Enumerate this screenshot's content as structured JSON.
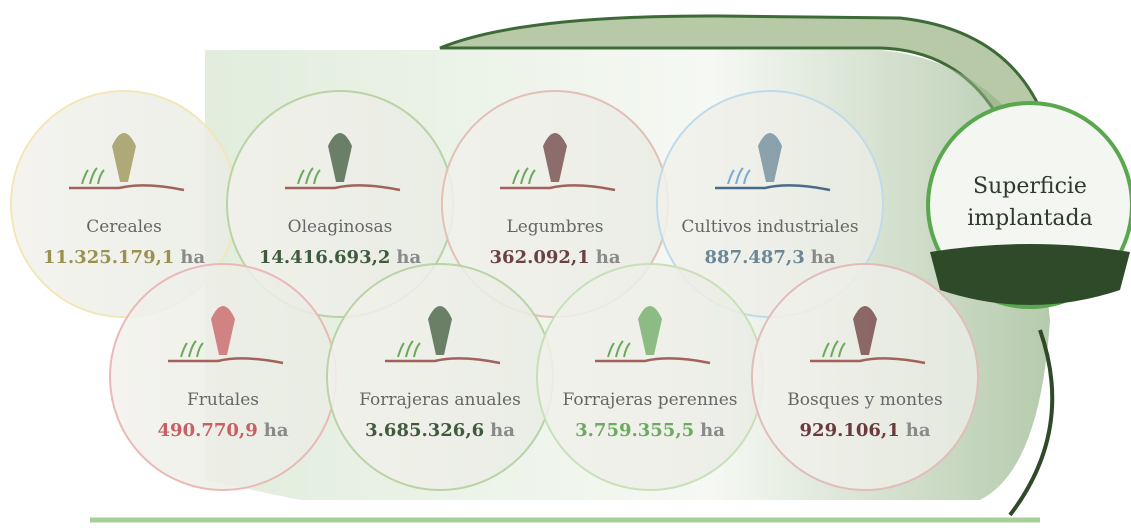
{
  "badge": {
    "title": "Superficie implantada"
  },
  "items": [
    {
      "label": "Cereales",
      "value": "11.325.179,1",
      "unit": "ha",
      "color": "#9a9050",
      "ring": "#f3e6b8"
    },
    {
      "label": "Oleaginosas",
      "value": "14.416.693,2",
      "unit": "ha",
      "color": "#3f5a3c",
      "ring": "#b9d3a6"
    },
    {
      "label": "Legumbres",
      "value": "362.092,1",
      "unit": "ha",
      "color": "#6b4242",
      "ring": "#e2c0b6"
    },
    {
      "label": "Cultivos industriales",
      "value": "887.487,3",
      "unit": "ha",
      "color": "#6a8797",
      "ring": "#bfdbea"
    },
    {
      "label": "Frutales",
      "value": "490.770,9",
      "unit": "ha",
      "color": "#c85f62",
      "ring": "#eab9b6"
    },
    {
      "label": "Forrajeras anuales",
      "value": "3.685.326,6",
      "unit": "ha",
      "color": "#3f5a3c",
      "ring": "#b9d3a6"
    },
    {
      "label": "Forrajeras perennes",
      "value": "3.759.355,5",
      "unit": "ha",
      "color": "#6caa62",
      "ring": "#c8e0b8"
    },
    {
      "label": "Bosques y montes",
      "value": "929.106,1",
      "unit": "ha",
      "color": "#6b3a3a",
      "ring": "#e2bcb8"
    }
  ]
}
